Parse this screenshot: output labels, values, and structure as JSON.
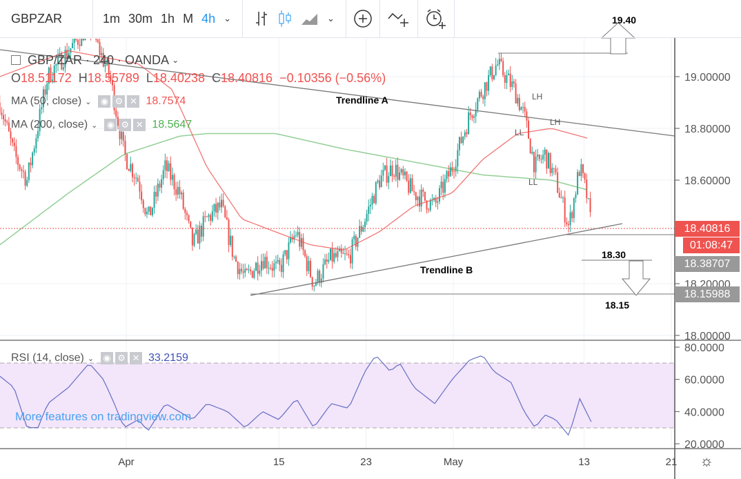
{
  "toolbar": {
    "symbol": "GBPZAR",
    "intervals": [
      "1m",
      "30m",
      "1h",
      "M",
      "4h"
    ],
    "active_interval": "4h"
  },
  "legend": {
    "title": "GBP/ZAR · 240 · OANDA",
    "o_label": "O",
    "o": "18.51172",
    "h_label": "H",
    "h": "18.55789",
    "l_label": "L",
    "l": "18.40238",
    "c_label": "C",
    "c": "18.40816",
    "change": "−0.10356 (−0.56%)",
    "ma50_label": "MA (50, close)",
    "ma50_value": "18.7574",
    "ma200_label": "MA (200, close)",
    "ma200_value": "18.5647",
    "rsi_label": "RSI (14, close)",
    "rsi_value": "33.2159"
  },
  "annotations": {
    "trendline_a": "Trendline A",
    "trendline_b": "Trendline B",
    "target_up": "19.40",
    "target_mid": "18.30",
    "target_down": "18.15",
    "lh1": "LH",
    "ll1": "LL",
    "lh2": "LH",
    "ll2": "LL"
  },
  "price_axis": {
    "ticks": [
      "19.00000",
      "18.80000",
      "18.60000",
      "18.20000",
      "18.00000"
    ],
    "last_price": "18.40816",
    "countdown": "01:08:47",
    "level1": "18.38707",
    "level2": "18.15988"
  },
  "rsi_axis": {
    "ticks": [
      "80.0000",
      "60.0000",
      "40.0000",
      "20.0000"
    ]
  },
  "time_axis": {
    "ticks": [
      "Apr",
      "15",
      "23",
      "May",
      "13",
      "21"
    ]
  },
  "watermark": "More features on tradingview.com",
  "colors": {
    "up": "#26a69a",
    "down": "#ef5350",
    "ma50": "#ef5350",
    "ma200": "#4caf50",
    "rsi": "#3f51b5",
    "rsi_band": "#f3e5fa"
  },
  "chart_data": {
    "type": "candlestick",
    "title": "GBP/ZAR 240 OANDA",
    "x_unit": "days from Apr 1 (approx.)",
    "ylim": [
      17.9,
      19.1
    ],
    "close_path": [
      [
        -11.6,
        18.9
      ],
      [
        -10.3,
        18.7
      ],
      [
        -9.1,
        18.6
      ],
      [
        -7.2,
        19.0
      ],
      [
        -5.3,
        19.1
      ],
      [
        -3.4,
        19.2
      ],
      [
        -1.5,
        19.0
      ],
      [
        -0.2,
        18.7
      ],
      [
        1.1,
        18.6
      ],
      [
        2,
        18.45
      ],
      [
        3.6,
        18.65
      ],
      [
        4.9,
        18.55
      ],
      [
        6.1,
        18.35
      ],
      [
        7.4,
        18.45
      ],
      [
        8.7,
        18.5
      ],
      [
        9.9,
        18.3
      ],
      [
        10.9,
        18.22
      ],
      [
        12.5,
        18.3
      ],
      [
        14,
        18.25
      ],
      [
        15.6,
        18.4
      ],
      [
        17.2,
        18.2
      ],
      [
        18.8,
        18.3
      ],
      [
        20.4,
        18.3
      ],
      [
        21.9,
        18.45
      ],
      [
        23.2,
        18.6
      ],
      [
        24.5,
        18.65
      ],
      [
        26.4,
        18.55
      ],
      [
        28.3,
        18.5
      ],
      [
        29.9,
        18.65
      ],
      [
        31.5,
        18.85
      ],
      [
        32.7,
        18.95
      ],
      [
        34,
        19.05
      ],
      [
        35.6,
        18.95
      ],
      [
        36.5,
        18.85
      ],
      [
        37.5,
        18.65
      ],
      [
        38.4,
        18.7
      ],
      [
        39.4,
        18.6
      ],
      [
        40.6,
        18.42
      ],
      [
        41.6,
        18.65
      ],
      [
        42.2,
        18.55
      ],
      [
        42.7,
        18.41
      ]
    ],
    "ma50": [
      [
        -11.6,
        19.0
      ],
      [
        -5.3,
        19.1
      ],
      [
        1.1,
        19.05
      ],
      [
        4.2,
        18.95
      ],
      [
        7.4,
        18.65
      ],
      [
        10.6,
        18.45
      ],
      [
        13.7,
        18.4
      ],
      [
        16.9,
        18.35
      ],
      [
        20,
        18.33
      ],
      [
        23.2,
        18.4
      ],
      [
        26.4,
        18.5
      ],
      [
        29.9,
        18.55
      ],
      [
        32.7,
        18.68
      ],
      [
        35.9,
        18.78
      ],
      [
        39,
        18.8
      ],
      [
        42.5,
        18.76
      ]
    ],
    "ma200": [
      [
        -11.6,
        18.35
      ],
      [
        -5.3,
        18.55
      ],
      [
        -0.2,
        18.7
      ],
      [
        4.9,
        18.77
      ],
      [
        7.4,
        18.78
      ],
      [
        13.7,
        18.78
      ],
      [
        20,
        18.72
      ],
      [
        26.4,
        18.67
      ],
      [
        32.7,
        18.62
      ],
      [
        39,
        18.6
      ],
      [
        42.5,
        18.56
      ]
    ],
    "rsi": [
      [
        -11.6,
        62
      ],
      [
        -10.3,
        55
      ],
      [
        -9.1,
        30
      ],
      [
        -8.1,
        30
      ],
      [
        -7.2,
        45
      ],
      [
        -5.3,
        55
      ],
      [
        -3.4,
        70
      ],
      [
        -2.1,
        60
      ],
      [
        -1.1,
        45
      ],
      [
        -0.2,
        30
      ],
      [
        1.1,
        35
      ],
      [
        2,
        28
      ],
      [
        3.6,
        45
      ],
      [
        6.1,
        35
      ],
      [
        7.4,
        45
      ],
      [
        9.3,
        40
      ],
      [
        10.9,
        30
      ],
      [
        12.5,
        40
      ],
      [
        14,
        35
      ],
      [
        15.6,
        48
      ],
      [
        17.2,
        30
      ],
      [
        18.8,
        45
      ],
      [
        20.4,
        42
      ],
      [
        21.9,
        65
      ],
      [
        22.9,
        75
      ],
      [
        24.2,
        65
      ],
      [
        25.1,
        70
      ],
      [
        26.4,
        55
      ],
      [
        28.3,
        45
      ],
      [
        29.9,
        60
      ],
      [
        31.5,
        72
      ],
      [
        32.7,
        75
      ],
      [
        33.7,
        65
      ],
      [
        35.3,
        58
      ],
      [
        36.5,
        40
      ],
      [
        37.5,
        30
      ],
      [
        38.4,
        38
      ],
      [
        39.4,
        35
      ],
      [
        40.6,
        25
      ],
      [
        41.6,
        48
      ],
      [
        42.7,
        33
      ]
    ],
    "rsi_range": [
      20,
      80
    ],
    "rsi_band": [
      30,
      70
    ]
  }
}
